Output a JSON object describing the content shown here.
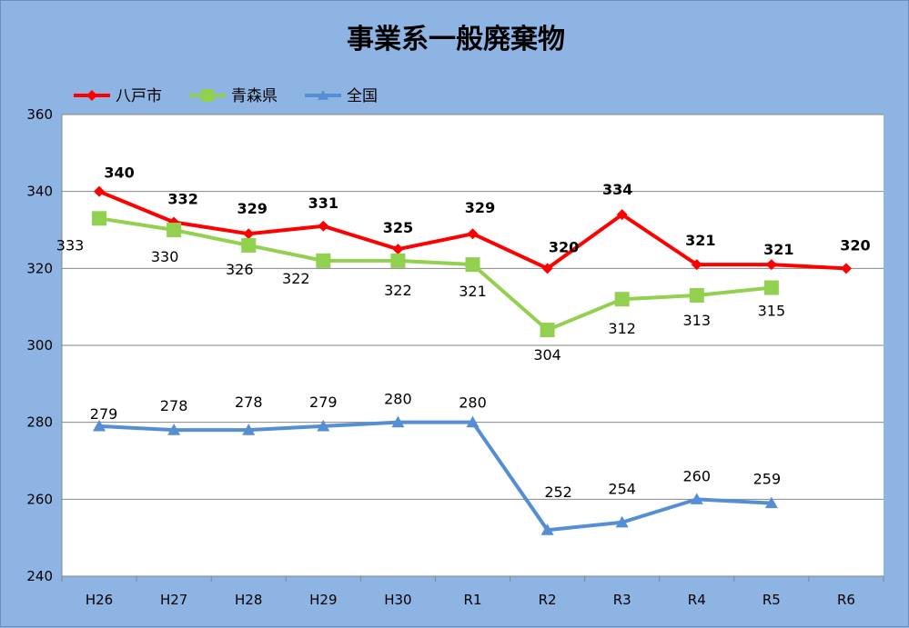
{
  "chart_data": {
    "type": "line",
    "title": "事業系一般廃棄物",
    "xlabel": "",
    "ylabel": "",
    "categories": [
      "H26",
      "H27",
      "H28",
      "H29",
      "H30",
      "R1",
      "R2",
      "R3",
      "R4",
      "R5",
      "R6"
    ],
    "ylim": [
      240,
      360
    ],
    "yticks": [
      240,
      260,
      280,
      300,
      320,
      340,
      360
    ],
    "grid": true,
    "legend_position": "top-left",
    "series": [
      {
        "name": "八戸市",
        "color": "#ff0000",
        "marker": "diamond",
        "label_style": "bold",
        "values": [
          340,
          332,
          329,
          331,
          325,
          329,
          320,
          334,
          321,
          321,
          320
        ]
      },
      {
        "name": "青森県",
        "color": "#92d050",
        "marker": "square",
        "label_style": "normal",
        "values": [
          333,
          330,
          326,
          322,
          322,
          321,
          304,
          312,
          313,
          315,
          null
        ]
      },
      {
        "name": "全国",
        "color": "#558ed5",
        "marker": "triangle",
        "label_style": "normal",
        "values": [
          279,
          278,
          278,
          279,
          280,
          280,
          252,
          254,
          260,
          259,
          null
        ]
      }
    ]
  }
}
